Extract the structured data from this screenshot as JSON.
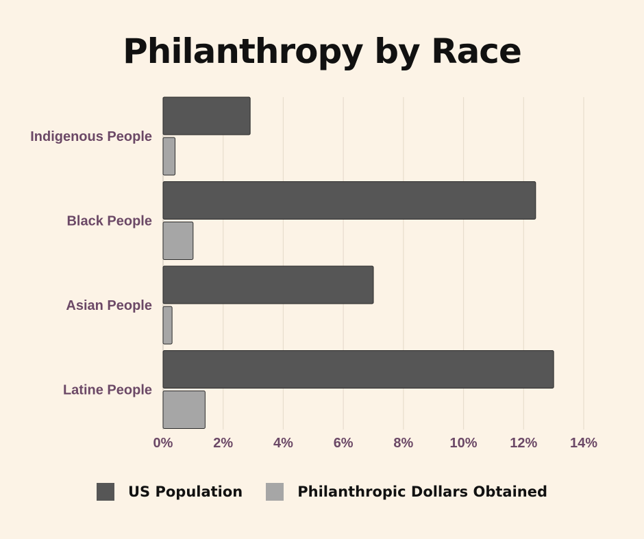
{
  "chart_data": {
    "type": "bar",
    "orientation": "horizontal",
    "title": "Philanthropy by Race",
    "categories": [
      "Indigenous People",
      "Black People",
      "Asian People",
      "Latine People"
    ],
    "series": [
      {
        "name": "US Population",
        "color": "#565656",
        "values": [
          2.9,
          12.4,
          7.0,
          13.0
        ]
      },
      {
        "name": "Philanthropic Dollars Obtained",
        "color": "#a6a6a6",
        "values": [
          0.4,
          1.0,
          0.3,
          1.4
        ]
      }
    ],
    "xlim": [
      0,
      14
    ],
    "xticks": [
      0,
      2,
      4,
      6,
      8,
      10,
      12,
      14
    ],
    "xtick_labels": [
      "0%",
      "2%",
      "4%",
      "6%",
      "8%",
      "10%",
      "12%",
      "14%"
    ],
    "grid": "vertical",
    "legend_position": "bottom"
  }
}
